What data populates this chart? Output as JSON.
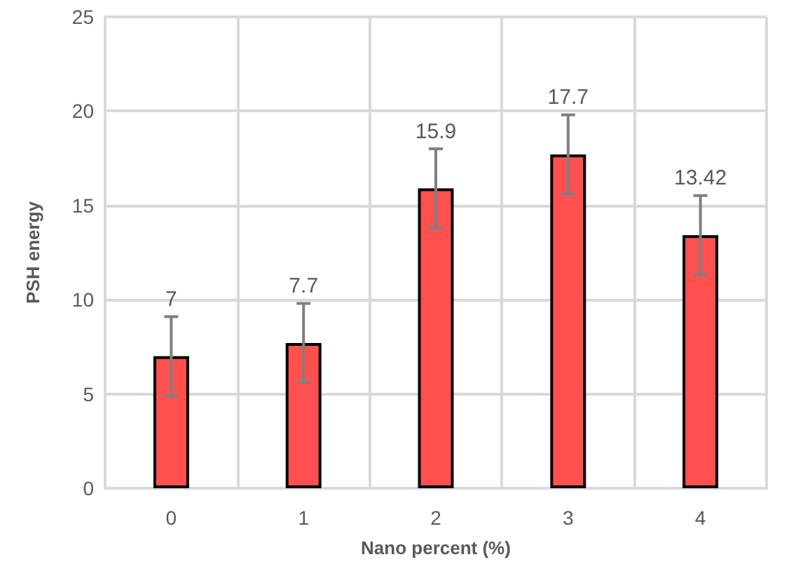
{
  "chart_data": {
    "type": "bar",
    "xlabel": "Nano percent (%)",
    "ylabel": "PSH energy",
    "categories": [
      "0",
      "1",
      "2",
      "3",
      "4"
    ],
    "values": [
      7,
      7.7,
      15.9,
      17.7,
      13.42
    ],
    "color": "#ff5050",
    "errors": [
      2.1,
      2.1,
      2.1,
      2.1,
      2.1
    ],
    "ylim": [
      0,
      25
    ],
    "yticks": [
      0,
      5,
      10,
      15,
      20,
      25
    ],
    "grid": true,
    "data_labels": true
  }
}
